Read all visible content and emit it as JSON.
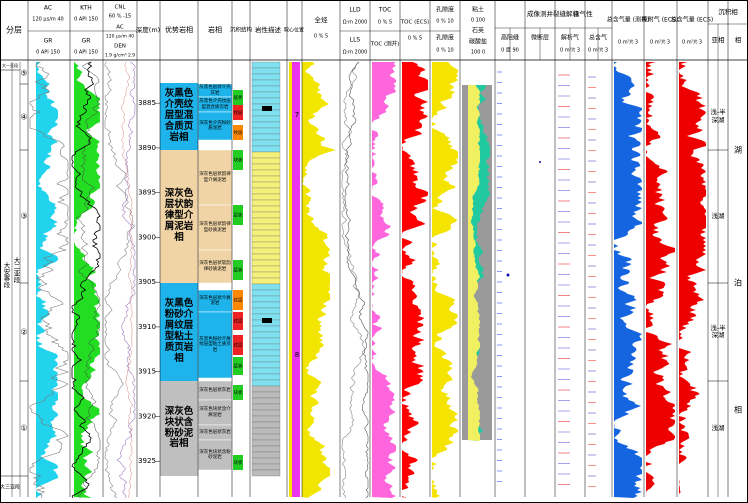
{
  "header": {
    "labels": [
      "分层",
      "AC",
      "120 μs/m 40",
      "GR",
      "0 API 150",
      "KTH",
      "0 API 150",
      "GR",
      "0 API 150",
      "CNL",
      "60 % -15",
      "AC",
      "120 μs/m 40",
      "DEN",
      "1.9 g/cm³ 2.9",
      "深度(m)",
      "优势岩相",
      "岩相",
      "沉积结构",
      "岩性描述",
      "取心位置",
      "全烃",
      "0 % 5",
      "LLD",
      "Ω·m 2000",
      "LLS",
      "Ω·m 2000",
      "TOC",
      "0 % 5",
      "TOC (测井)",
      "TOC (ECS)",
      "0 % 5",
      "孔隙度",
      "0 % 10",
      "孔隙度",
      "0 % 10",
      "粘土",
      "0 100",
      "石英",
      "碳酸盐",
      "100 0",
      "成像测井裂缝解释",
      "高阻缝",
      "0 度 90",
      "微断层",
      "含气性",
      "解析气",
      "0 m³/t 3",
      "总含气",
      "0 m³/t 3",
      "总含气量 (测井)",
      "0 m³/t 3",
      "吸附气 (ECS)",
      "0 m³/t 3",
      "总含气量 (ECS)",
      "0 m³/t 3",
      "沉积相",
      "亚相",
      "相"
    ]
  },
  "strata": {
    "formation": "大安寨段",
    "members": [
      "大一亚段",
      "大二亚段",
      "大三亚段"
    ],
    "beds": [
      "⑤",
      "④",
      "③",
      "②",
      "①"
    ]
  },
  "depth": {
    "range": [
      3880.4,
      3929
    ],
    "ticks": [
      3885,
      3890,
      3895,
      3900,
      3905,
      3910,
      3915,
      3920,
      3925
    ]
  },
  "dominant_facies": [
    "灰黑色介壳纹层型混合质页岩相",
    "深灰色层状韵律型介屑泥岩相",
    "灰黑色粉砂介屑纹层型粘土质页岩相",
    "深灰色块状含粉砂泥岩相"
  ],
  "lithofacies": [
    "灰黑色层状介壳灰岩",
    "灰黑色介壳纹层型混合质页岩",
    "深灰色介壳粉砂质泥岩",
    "深灰色层状韵律型介屑泥岩",
    "深灰色层状韵律型砂质泥岩",
    "深灰色层状软韵律砂质泥岩",
    "深灰色层状介屑泥岩",
    "灰黑色粉砂介屑纹层型粘土质页岩",
    "深灰色层状灰岩",
    "深灰色块状含介屑泥岩",
    "深灰色层状灰岩",
    "深灰色块状含粉砂泥岩"
  ],
  "structures": [
    "层状",
    "纹层",
    "纹层",
    "块状",
    "层状",
    "层状",
    "纹层",
    "纹层",
    "纹层",
    "层状",
    "块状",
    "块状"
  ],
  "core_runs": [
    7,
    8
  ],
  "subfacies": [
    "浅-半深湖",
    "浅湖",
    "浅-半深湖",
    "浅湖"
  ],
  "facies": [
    "湖",
    "泊",
    "相"
  ]
}
